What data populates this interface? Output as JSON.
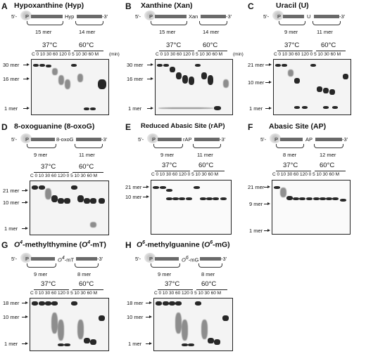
{
  "panels": [
    {
      "letter": "A",
      "title": "Hypoxanthine (Hyp)",
      "lesion": "Hyp",
      "left_len": "15 mer",
      "right_len": "14 mer",
      "temp1": "37°C",
      "temp2": "60°C",
      "lanes": "C 0 10 30 60 120 0 5 10 30 60 M",
      "unit": "(min)",
      "markers": [
        "30 mer",
        "16 mer",
        "1 mer"
      ]
    },
    {
      "letter": "B",
      "title": "Xanthine (Xan)",
      "lesion": "Xan",
      "left_len": "15 mer",
      "right_len": "14 mer",
      "temp1": "37°C",
      "temp2": "60°C",
      "lanes": "C 0 10 30 60 120 0 5 10 30 60 M",
      "unit": "(min)",
      "markers": [
        "30 mer",
        "16 mer",
        "1 mer"
      ]
    },
    {
      "letter": "C",
      "title": "Uracil (U)",
      "lesion": "U",
      "left_len": "9 mer",
      "right_len": "11 mer",
      "temp1": "37°C",
      "temp2": "60°C",
      "lanes": "C 0 10 30 60 120 0 5 10 30 60 M",
      "unit": "",
      "markers": [
        "21 mer",
        "10 mer",
        "1 mer"
      ]
    },
    {
      "letter": "D",
      "title": "8-oxoguanine (8-oxoG)",
      "lesion": "8-oxoG",
      "left_len": "9 mer",
      "right_len": "11 mer",
      "temp1": "37°C",
      "temp2": "60°C",
      "lanes": "C 0 10 30 60 120 0 5 10 30 60 M",
      "unit": "",
      "markers": [
        "21 mer",
        "10 mer",
        "1 mer"
      ]
    },
    {
      "letter": "E",
      "title": "Reduced Abasic Site (rAP)",
      "lesion": "rAP",
      "left_len": "9 mer",
      "right_len": "11 mer",
      "temp1": "37°C",
      "temp2": "60°C",
      "lanes": "C 0 10 30 60 120 0 5 10 30 60 M",
      "unit": "",
      "markers": [
        "21 mer",
        "10 mer"
      ]
    },
    {
      "letter": "F",
      "title": "Abasic Site (AP)",
      "lesion": "AP",
      "left_len": "8 mer",
      "right_len": "12 mer",
      "temp1": "37°C",
      "temp2": "60°C",
      "lanes": "C 0 10 30 60 120 0 5 10 30 60 M",
      "unit": "",
      "markers": [
        "21 mer",
        "9 mer",
        "1 mer"
      ]
    },
    {
      "letter": "G",
      "title": "-methylthymine (",
      "title_pre": "O",
      "title_sup": "4",
      "title_mid": "O",
      "title_sup2": "4",
      "title_end": "-mT)",
      "lesion": "-mT",
      "lesion_pre": "O",
      "lesion_sup": "4",
      "left_len": "9 mer",
      "right_len": "8 mer",
      "temp1": "37°C",
      "temp2": "60°C",
      "lanes": "C 0 10 30 60 120 0 5 10 30 60 M",
      "unit": "",
      "markers": [
        "18 mer",
        "10 mer",
        "1 mer"
      ]
    },
    {
      "letter": "H",
      "title": "-methylguanine (",
      "title_pre": "O",
      "title_sup": "6",
      "title_mid": "O",
      "title_sup2": "6",
      "title_end": "-mG)",
      "lesion": "-mG",
      "lesion_pre": "O",
      "lesion_sup": "6",
      "left_len": "9 mer",
      "right_len": "8 mer",
      "temp1": "37°C",
      "temp2": "60°C",
      "lanes": "C 0 10 30 60 120 0 5 10 30 60 M",
      "unit": "",
      "markers": [
        "18 mer",
        "10 mer",
        "1 mer"
      ]
    }
  ],
  "label_5p": "5'-",
  "label_3p": "-3'",
  "label_P": "P"
}
